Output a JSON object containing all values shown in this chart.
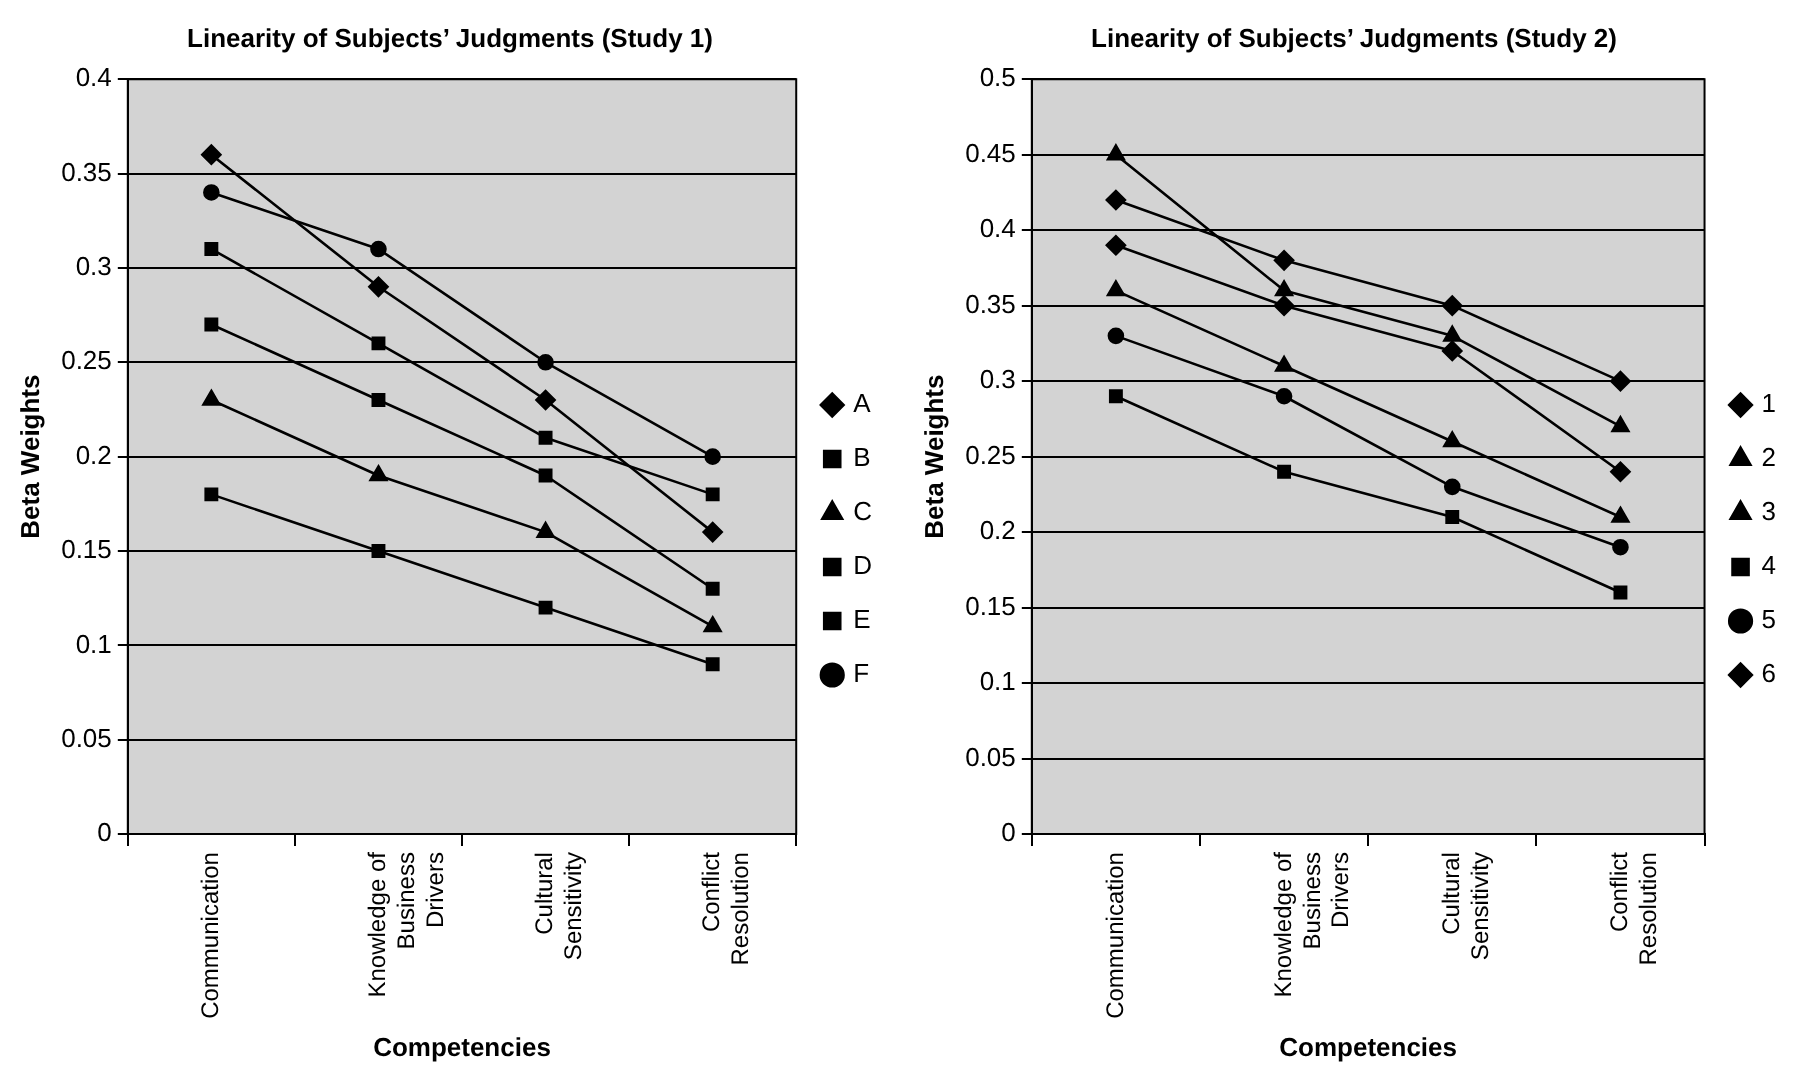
{
  "chart_data": [
    {
      "type": "line",
      "title": "Linearity of Subjects’ Judgments (Study 1)",
      "xlabel": "Competencies",
      "ylabel": "Beta Weights",
      "categories": [
        "Communication",
        "Knowledge of Business Drivers",
        "Cultural Sensitivity",
        "Conflict Resolution"
      ],
      "ylim": [
        0,
        0.4
      ],
      "yticks": [
        0,
        0.05,
        0.1,
        0.15,
        0.2,
        0.25,
        0.3,
        0.35,
        0.4
      ],
      "grid": "y",
      "legend": "right",
      "series": [
        {
          "name": "A",
          "color": "#000000",
          "marker": "diamond",
          "values": [
            0.36,
            0.29,
            0.23,
            0.16
          ]
        },
        {
          "name": "B",
          "color": "#000000",
          "marker": "square",
          "values": [
            0.27,
            0.23,
            0.19,
            0.13
          ]
        },
        {
          "name": "C",
          "color": "#000000",
          "marker": "triangle",
          "values": [
            0.23,
            0.19,
            0.16,
            0.11
          ]
        },
        {
          "name": "D",
          "color": "#000000",
          "marker": "square",
          "values": [
            0.31,
            0.26,
            0.21,
            0.18
          ]
        },
        {
          "name": "E",
          "color": "#000000",
          "marker": "square",
          "values": [
            0.18,
            0.15,
            0.12,
            0.09
          ]
        },
        {
          "name": "F",
          "color": "#000000",
          "marker": "circle",
          "values": [
            0.34,
            0.31,
            0.25,
            0.2
          ]
        }
      ]
    },
    {
      "type": "line",
      "title": "Linearity of Subjects’ Judgments (Study 2)",
      "xlabel": "Competencies",
      "ylabel": "Beta Weights",
      "categories": [
        "Communication",
        "Knowledge of Business Drivers",
        "Cultural Sensitivity",
        "Conflict Resolution"
      ],
      "ylim": [
        0,
        0.5
      ],
      "yticks": [
        0,
        0.05,
        0.1,
        0.15,
        0.2,
        0.25,
        0.3,
        0.35,
        0.4,
        0.45,
        0.5
      ],
      "grid": "y",
      "legend": "right",
      "series": [
        {
          "name": "1",
          "color": "#000000",
          "marker": "diamond",
          "values": [
            0.42,
            0.38,
            0.35,
            0.3
          ]
        },
        {
          "name": "2",
          "color": "#000000",
          "marker": "triangle",
          "values": [
            0.45,
            0.36,
            0.33,
            0.27
          ]
        },
        {
          "name": "3",
          "color": "#000000",
          "marker": "triangle",
          "values": [
            0.36,
            0.31,
            0.26,
            0.21
          ]
        },
        {
          "name": "4",
          "color": "#000000",
          "marker": "square",
          "values": [
            0.29,
            0.24,
            0.21,
            0.16
          ]
        },
        {
          "name": "5",
          "color": "#000000",
          "marker": "circle",
          "values": [
            0.33,
            0.29,
            0.23,
            0.19
          ]
        },
        {
          "name": "6",
          "color": "#000000",
          "marker": "diamond",
          "values": [
            0.39,
            0.35,
            0.32,
            0.24
          ]
        }
      ]
    }
  ]
}
